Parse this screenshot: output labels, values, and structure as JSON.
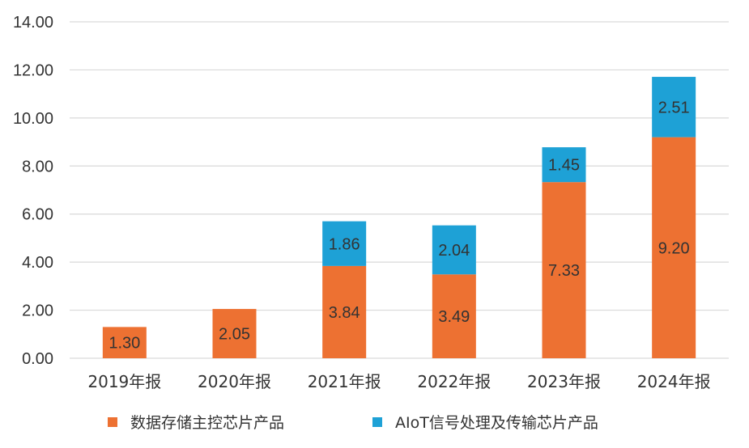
{
  "chart_data": {
    "type": "bar",
    "stacked": true,
    "categories": [
      "2019年报",
      "2020年报",
      "2021年报",
      "2022年报",
      "2023年报",
      "2024年报"
    ],
    "series": [
      {
        "name": "数据存储主控芯片产品",
        "color": "#ED7132",
        "values": [
          1.3,
          2.05,
          3.84,
          3.49,
          7.33,
          9.2
        ],
        "labels": [
          "1.30",
          "2.05",
          "3.84",
          "3.49",
          "7.33",
          "9.20"
        ]
      },
      {
        "name": "AIoT信号处理及传输芯片产品",
        "color": "#1EA1D6",
        "values": [
          null,
          null,
          1.86,
          2.04,
          1.45,
          2.51
        ],
        "labels": [
          "",
          "",
          "1.86",
          "2.04",
          "1.45",
          "2.51"
        ]
      }
    ],
    "ylim": [
      0,
      14
    ],
    "yticks": [
      "0.00",
      "2.00",
      "4.00",
      "6.00",
      "8.00",
      "10.00",
      "12.00",
      "14.00"
    ],
    "title": "",
    "xlabel": "",
    "ylabel": "",
    "grid": true,
    "legend_position": "bottom"
  }
}
